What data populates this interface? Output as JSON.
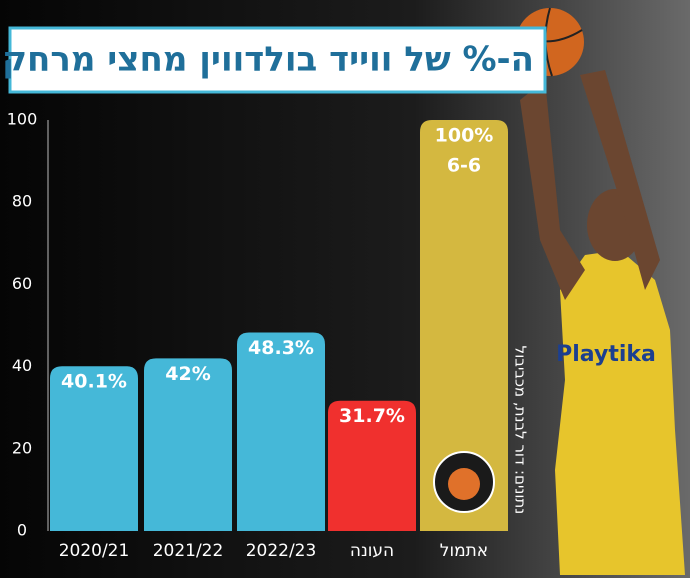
{
  "chart_data": {
    "type": "bar",
    "title": "ה-% של ווייד בולדווין מחצי מרחק",
    "categories": [
      "2020/21",
      "2021/22",
      "2022/23",
      "העונה",
      "אתמול"
    ],
    "values": [
      40.1,
      42,
      48.3,
      31.7,
      100
    ],
    "value_labels": [
      "40.1%",
      "42%",
      "48.3%",
      "31.7%",
      "100%"
    ],
    "colors": [
      "#45b8d8",
      "#45b8d8",
      "#45b8d8",
      "#f0302e",
      "#d4b840"
    ],
    "annotations": [
      "6-6"
    ],
    "source": "נתונים: דור לבנת, מכביבול",
    "ylim": [
      0,
      100
    ],
    "yticks": [
      0,
      20,
      40,
      60,
      80,
      100
    ]
  }
}
